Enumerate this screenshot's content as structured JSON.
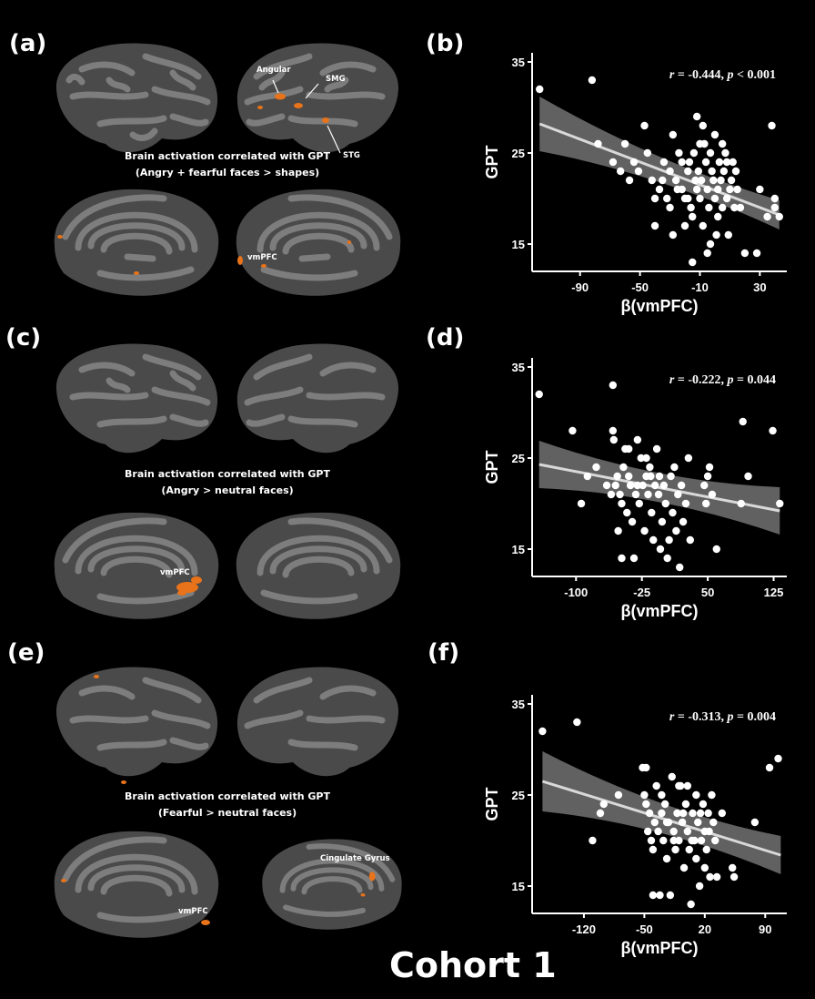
{
  "panels": {
    "a": "(a)",
    "b": "(b)",
    "c": "(c)",
    "d": "(d)",
    "e": "(e)",
    "f": "(f)"
  },
  "brain_panels": [
    {
      "caption_line1": "Brain activation correlated with GPT",
      "caption_line2": "(Angry + fearful faces > shapes)",
      "labels": {
        "angular": "Angular",
        "smg": "SMG",
        "stg": "STG",
        "vmpfc": "vmPFC"
      }
    },
    {
      "caption_line1": "Brain activation correlated with GPT",
      "caption_line2": "(Angry  > neutral faces)",
      "labels": {
        "vmpfc": "vmPFC"
      }
    },
    {
      "caption_line1": "Brain activation correlated with GPT",
      "caption_line2": "(Fearful  > neutral faces)",
      "labels": {
        "vmpfc": "vmPFC",
        "cingulate": "Cingulate Gyrus"
      }
    }
  ],
  "cohort_label": "Cohort 1",
  "colors": {
    "background": "#000000",
    "cortex_dark": "#4a4a4a",
    "cortex_light": "#7d7d7d",
    "activation": "#e8731a",
    "ci_band": "#6b6b6b",
    "fit_line": "#d9d9d9",
    "points": "#ffffff"
  },
  "chart_data": [
    {
      "type": "scatter",
      "panel": "(b)",
      "annotation": {
        "r": "r",
        "r_text": " = -0.444, ",
        "p": "p",
        "p_text": " < 0.001"
      },
      "xlabel": "β(vmPFC)",
      "ylabel": "GPT",
      "xticks": [
        -90,
        -50,
        -10,
        30
      ],
      "yticks": [
        15,
        25,
        35
      ],
      "xlim": [
        -122,
        48
      ],
      "ylim": [
        12,
        36
      ],
      "fit": {
        "x1": -117,
        "y1": 28.2,
        "x2": 43,
        "y2": 18.2,
        "ci_left": 3.0,
        "ci_mid": 0.5,
        "ci_right": 1.6
      },
      "points": [
        [
          -117,
          32
        ],
        [
          -82,
          33
        ],
        [
          -78,
          26
        ],
        [
          -68,
          24
        ],
        [
          -63,
          23
        ],
        [
          -60,
          26
        ],
        [
          -57,
          22
        ],
        [
          -54,
          24
        ],
        [
          -51,
          23
        ],
        [
          -47,
          28
        ],
        [
          -45,
          25
        ],
        [
          -42,
          22
        ],
        [
          -40,
          20
        ],
        [
          -37,
          21
        ],
        [
          -34,
          24
        ],
        [
          -32,
          20
        ],
        [
          -30,
          23
        ],
        [
          -28,
          27
        ],
        [
          -26,
          22
        ],
        [
          -24,
          25
        ],
        [
          -22,
          21
        ],
        [
          -20,
          20
        ],
        [
          -18,
          23
        ],
        [
          -17,
          24
        ],
        [
          -16,
          19
        ],
        [
          -15,
          18
        ],
        [
          -14,
          25
        ],
        [
          -13,
          22
        ],
        [
          -12,
          21
        ],
        [
          -11,
          23
        ],
        [
          -10,
          20
        ],
        [
          -9,
          22
        ],
        [
          -8,
          17
        ],
        [
          -7,
          26
        ],
        [
          -6,
          24
        ],
        [
          -5,
          21
        ],
        [
          -4,
          19
        ],
        [
          -3,
          15
        ],
        [
          -2,
          23
        ],
        [
          -1,
          22
        ],
        [
          0,
          20
        ],
        [
          1,
          16
        ],
        [
          2,
          21
        ],
        [
          3,
          24
        ],
        [
          4,
          22
        ],
        [
          5,
          19
        ],
        [
          6,
          23
        ],
        [
          7,
          25
        ],
        [
          8,
          20
        ],
        [
          9,
          16
        ],
        [
          10,
          21
        ],
        [
          11,
          22
        ],
        [
          12,
          24
        ],
        [
          13,
          19
        ],
        [
          14,
          23
        ],
        [
          15,
          21
        ],
        [
          -12,
          29
        ],
        [
          -8,
          28
        ],
        [
          0,
          27
        ],
        [
          -20,
          17
        ],
        [
          -25,
          21
        ],
        [
          -35,
          22
        ],
        [
          -30,
          19
        ],
        [
          -5,
          14
        ],
        [
          -15,
          13
        ],
        [
          -28,
          16
        ],
        [
          -40,
          17
        ],
        [
          17,
          19
        ],
        [
          20,
          14
        ],
        [
          28,
          14
        ],
        [
          30,
          21
        ],
        [
          35,
          18
        ],
        [
          38,
          28
        ],
        [
          40,
          20
        ],
        [
          40,
          19
        ],
        [
          43,
          18
        ],
        [
          -10,
          26
        ],
        [
          -3,
          25
        ],
        [
          2,
          18
        ],
        [
          5,
          26
        ],
        [
          8,
          24
        ],
        [
          -18,
          20
        ],
        [
          -22,
          24
        ]
      ]
    },
    {
      "type": "scatter",
      "panel": "(d)",
      "annotation": {
        "r": "r",
        "r_text": " = -0.222, ",
        "p": "p",
        "p_text": " = 0.044"
      },
      "xlabel": "β(vmPFC)",
      "ylabel": "GPT",
      "xticks": [
        -100,
        -25,
        50,
        125
      ],
      "yticks": [
        15,
        25,
        35
      ],
      "xlim": [
        -150,
        140
      ],
      "ylim": [
        12,
        36
      ],
      "fit": {
        "x1": -142,
        "y1": 24.3,
        "x2": 132,
        "y2": 19.2,
        "ci_left": 2.6,
        "ci_mid": 0.6,
        "ci_right": 2.6
      },
      "points": [
        [
          -142,
          32
        ],
        [
          -104,
          28
        ],
        [
          -94,
          20
        ],
        [
          -87,
          23
        ],
        [
          -77,
          24
        ],
        [
          -58,
          33
        ],
        [
          -58,
          28
        ],
        [
          -57,
          27
        ],
        [
          -55,
          22
        ],
        [
          -53,
          23
        ],
        [
          -50,
          21
        ],
        [
          -48,
          20
        ],
        [
          -46,
          24
        ],
        [
          -44,
          26
        ],
        [
          -42,
          19
        ],
        [
          -40,
          23
        ],
        [
          -38,
          22
        ],
        [
          -36,
          18
        ],
        [
          -34,
          14
        ],
        [
          -32,
          21
        ],
        [
          -30,
          27
        ],
        [
          -28,
          20
        ],
        [
          -26,
          25
        ],
        [
          -24,
          22
        ],
        [
          -22,
          17
        ],
        [
          -20,
          23
        ],
        [
          -18,
          21
        ],
        [
          -16,
          24
        ],
        [
          -14,
          19
        ],
        [
          -12,
          16
        ],
        [
          -10,
          22
        ],
        [
          -8,
          26
        ],
        [
          -6,
          21
        ],
        [
          -4,
          15
        ],
        [
          -2,
          18
        ],
        [
          0,
          22
        ],
        [
          2,
          20
        ],
        [
          4,
          14
        ],
        [
          6,
          16
        ],
        [
          8,
          23
        ],
        [
          10,
          19
        ],
        [
          12,
          24
        ],
        [
          14,
          17
        ],
        [
          16,
          21
        ],
        [
          18,
          13
        ],
        [
          20,
          22
        ],
        [
          22,
          18
        ],
        [
          25,
          20
        ],
        [
          28,
          25
        ],
        [
          30,
          16
        ],
        [
          -48,
          14
        ],
        [
          -52,
          17
        ],
        [
          -20,
          25
        ],
        [
          -5,
          23
        ],
        [
          -30,
          22
        ],
        [
          46,
          22
        ],
        [
          48,
          20
        ],
        [
          50,
          23
        ],
        [
          52,
          24
        ],
        [
          55,
          21
        ],
        [
          60,
          15
        ],
        [
          88,
          20
        ],
        [
          90,
          29
        ],
        [
          96,
          23
        ],
        [
          124,
          28
        ],
        [
          132,
          20
        ],
        [
          -65,
          22
        ],
        [
          -60,
          21
        ],
        [
          -15,
          23
        ],
        [
          -40,
          26
        ]
      ]
    },
    {
      "type": "scatter",
      "panel": "(f)",
      "annotation": {
        "r": "r",
        "r_text": " = -0.313, ",
        "p": "p",
        "p_text": " = 0.004"
      },
      "xlabel": "β(vmPFC)",
      "ylabel": "GPT",
      "xticks": [
        -120,
        -50,
        20,
        90
      ],
      "yticks": [
        15,
        25,
        35
      ],
      "xlim": [
        -180,
        115
      ],
      "ylim": [
        12,
        36
      ],
      "fit": {
        "x1": -168,
        "y1": 26.5,
        "x2": 108,
        "y2": 18.4,
        "ci_left": 3.3,
        "ci_mid": 0.6,
        "ci_right": 2.1
      },
      "points": [
        [
          -168,
          32
        ],
        [
          -128,
          33
        ],
        [
          -110,
          20
        ],
        [
          -101,
          23
        ],
        [
          -97,
          24
        ],
        [
          -80,
          25
        ],
        [
          -52,
          28
        ],
        [
          -50,
          25
        ],
        [
          -48,
          24
        ],
        [
          -46,
          21
        ],
        [
          -44,
          23
        ],
        [
          -42,
          20
        ],
        [
          -40,
          19
        ],
        [
          -38,
          22
        ],
        [
          -36,
          26
        ],
        [
          -34,
          21
        ],
        [
          -32,
          14
        ],
        [
          -30,
          23
        ],
        [
          -28,
          20
        ],
        [
          -26,
          24
        ],
        [
          -24,
          18
        ],
        [
          -22,
          22
        ],
        [
          -20,
          14
        ],
        [
          -18,
          27
        ],
        [
          -16,
          21
        ],
        [
          -14,
          19
        ],
        [
          -12,
          23
        ],
        [
          -10,
          20
        ],
        [
          -8,
          26
        ],
        [
          -6,
          22
        ],
        [
          -4,
          17
        ],
        [
          -2,
          24
        ],
        [
          0,
          21
        ],
        [
          2,
          19
        ],
        [
          4,
          13
        ],
        [
          6,
          23
        ],
        [
          8,
          20
        ],
        [
          10,
          18
        ],
        [
          12,
          22
        ],
        [
          14,
          15
        ],
        [
          16,
          20
        ],
        [
          18,
          24
        ],
        [
          20,
          21
        ],
        [
          22,
          19
        ],
        [
          24,
          23
        ],
        [
          26,
          16
        ],
        [
          28,
          25
        ],
        [
          30,
          22
        ],
        [
          32,
          20
        ],
        [
          34,
          16
        ],
        [
          40,
          23
        ],
        [
          52,
          17
        ],
        [
          54,
          16
        ],
        [
          78,
          22
        ],
        [
          95,
          28
        ],
        [
          105,
          29
        ],
        [
          -48,
          28
        ],
        [
          -40,
          14
        ],
        [
          -30,
          25
        ],
        [
          -10,
          26
        ],
        [
          0,
          26
        ],
        [
          10,
          25
        ],
        [
          20,
          17
        ],
        [
          15,
          23
        ],
        [
          -24,
          22
        ],
        [
          -16,
          20
        ],
        [
          5,
          20
        ],
        [
          -5,
          23
        ],
        [
          25,
          21
        ]
      ]
    }
  ]
}
